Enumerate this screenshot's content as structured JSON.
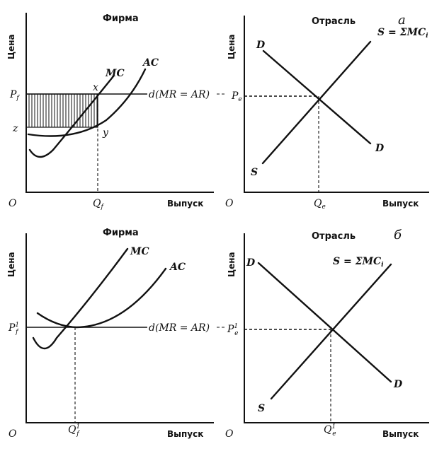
{
  "panel_a": {
    "letter": "а",
    "firm": {
      "title": "Фирма",
      "y_axis": "Цена",
      "x_axis": "Выпуск",
      "origin": "O",
      "price_label": "P",
      "price_sub": "f",
      "cost_label": "z",
      "qty_label": "Q",
      "qty_sub": "f",
      "mc": "MC",
      "ac": "AC",
      "point_x": "x",
      "point_y": "y",
      "demand": "d(MR = AR)"
    },
    "industry": {
      "title": "Отрасль",
      "y_axis": "Цена",
      "x_axis": "Выпуск",
      "origin": "O",
      "price_label": "P",
      "price_sub": "e",
      "qty_label": "Q",
      "qty_sub": "e",
      "demand_top": "D",
      "demand_bottom": "D",
      "supply_bottom": "S",
      "supply_label": "S = ΣMC",
      "supply_sub": "i"
    }
  },
  "panel_b": {
    "letter": "б",
    "firm": {
      "title": "Фирма",
      "y_axis": "Цена",
      "x_axis": "Выпуск",
      "origin": "O",
      "price_label": "P",
      "price_sub": "f",
      "price_sup": "1",
      "qty_label": "Q",
      "qty_sub": "f",
      "qty_sup": "1",
      "mc": "MC",
      "ac": "AC",
      "demand": "d(MR = AR)"
    },
    "industry": {
      "title": "Отрасль",
      "y_axis": "Цена",
      "x_axis": "Выпуск",
      "origin": "O",
      "price_label": "P",
      "price_sub": "e",
      "price_sup": "1",
      "qty_label": "Q",
      "qty_sub": "e",
      "qty_sup": "1",
      "demand_top": "D",
      "demand_bottom": "D",
      "supply_bottom": "S",
      "supply_label": "S = ΣMC",
      "supply_sub": "i"
    }
  }
}
